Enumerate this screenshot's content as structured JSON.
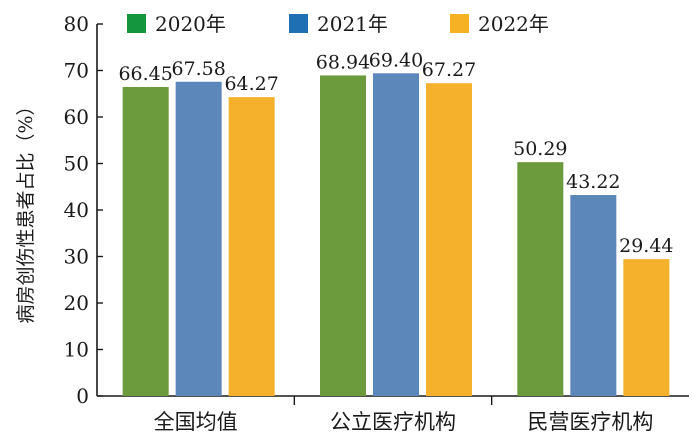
{
  "chart_data": {
    "type": "bar",
    "ylabel": "病房创伤性患者占比（%）",
    "ylim": [
      0,
      80
    ],
    "yticks": [
      0,
      10,
      20,
      30,
      40,
      50,
      60,
      70,
      80
    ],
    "grid": false,
    "legend_position": "top",
    "categories": [
      "全国均值",
      "公立医疗机构",
      "民营医疗机构"
    ],
    "series": [
      {
        "name": "2020年",
        "legend_color": "#14963c",
        "bar_color": "#6b9b3c",
        "values": [
          66.45,
          68.94,
          50.29
        ]
      },
      {
        "name": "2021年",
        "legend_color": "#1f6fb4",
        "bar_color": "#5b87bb",
        "values": [
          67.58,
          69.4,
          43.22
        ]
      },
      {
        "name": "2022年",
        "legend_color": "#f7b125",
        "bar_color": "#f5b12c",
        "values": [
          64.27,
          67.27,
          29.44
        ]
      }
    ],
    "data_labels": [
      [
        "66.45",
        "68.94",
        "50.29"
      ],
      [
        "67.58",
        "69.40",
        "43.22"
      ],
      [
        "64.27",
        "67.27",
        "29.44"
      ]
    ]
  }
}
